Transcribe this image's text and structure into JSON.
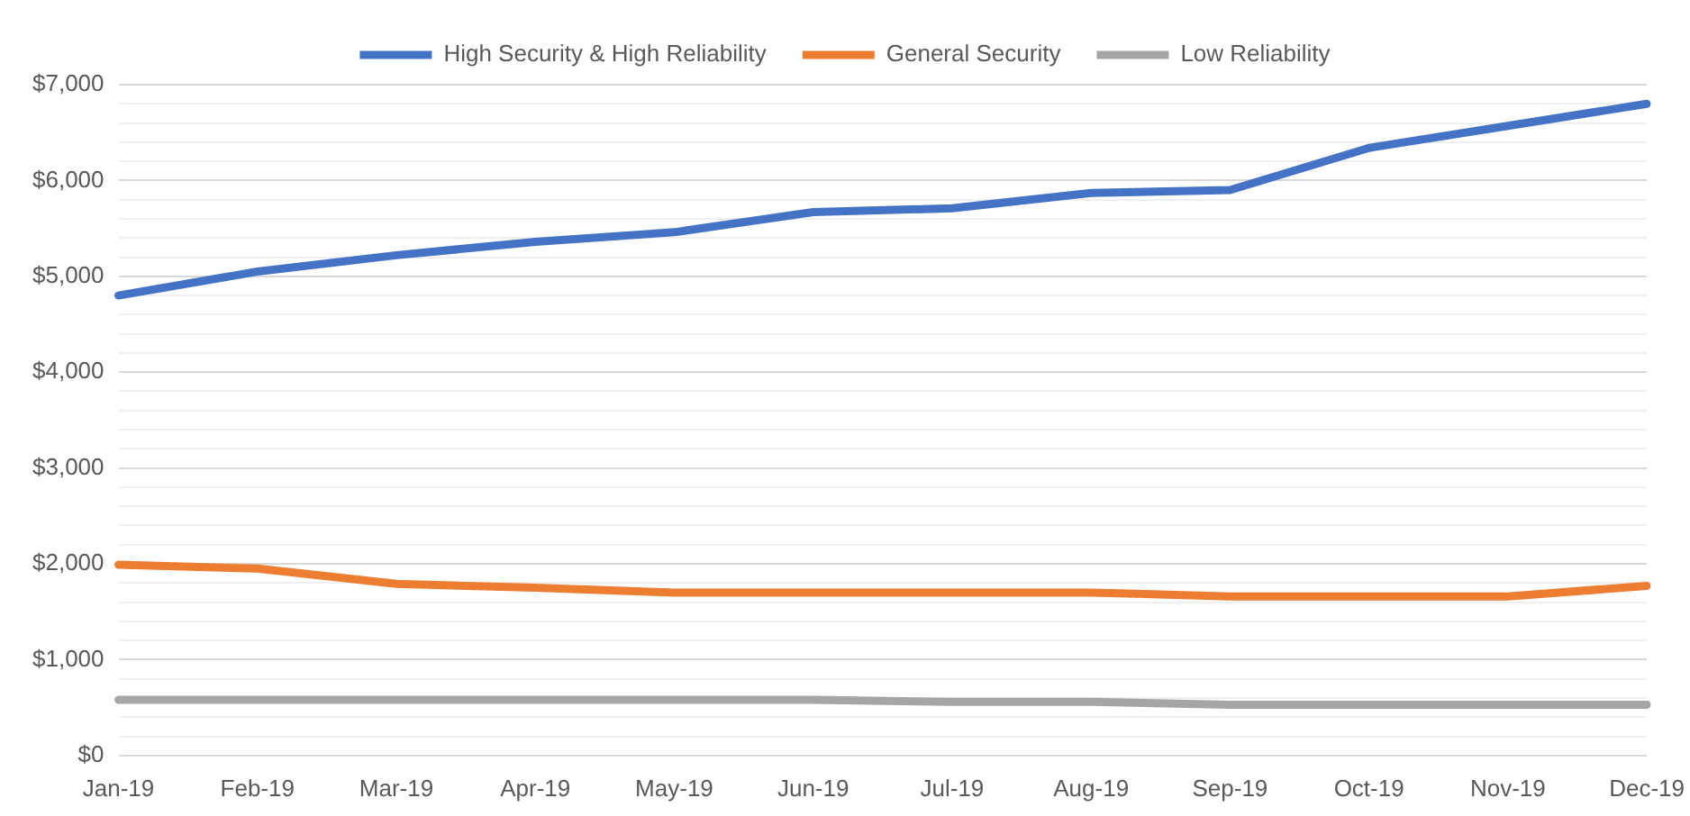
{
  "chart_data": {
    "type": "line",
    "categories": [
      "Jan-19",
      "Feb-19",
      "Mar-19",
      "Apr-19",
      "May-19",
      "Jun-19",
      "Jul-19",
      "Aug-19",
      "Sep-19",
      "Oct-19",
      "Nov-19",
      "Dec-19"
    ],
    "series": [
      {
        "name": "High Security & High Reliability",
        "color": "#4472c4",
        "values": [
          4800,
          5050,
          5220,
          5360,
          5460,
          5670,
          5710,
          5870,
          5900,
          6340,
          6570,
          6800
        ]
      },
      {
        "name": "General Security",
        "color": "#ed7d31",
        "values": [
          1990,
          1950,
          1790,
          1750,
          1700,
          1700,
          1700,
          1700,
          1660,
          1660,
          1660,
          1770
        ]
      },
      {
        "name": "Low Reliability",
        "color": "#a5a5a5",
        "values": [
          580,
          580,
          580,
          580,
          580,
          580,
          560,
          560,
          530,
          530,
          530,
          530
        ]
      }
    ],
    "ylim": [
      0,
      7000
    ],
    "yticks": [
      {
        "value": 0,
        "label": "$0"
      },
      {
        "value": 200,
        "label": null
      },
      {
        "value": 400,
        "label": null
      },
      {
        "value": 600,
        "label": null
      },
      {
        "value": 800,
        "label": null
      },
      {
        "value": 1000,
        "label": "$1,000"
      },
      {
        "value": 1200,
        "label": null
      },
      {
        "value": 1400,
        "label": null
      },
      {
        "value": 1600,
        "label": null
      },
      {
        "value": 1800,
        "label": null
      },
      {
        "value": 2000,
        "label": "$2,000"
      },
      {
        "value": 2200,
        "label": null
      },
      {
        "value": 2400,
        "label": null
      },
      {
        "value": 2600,
        "label": null
      },
      {
        "value": 2800,
        "label": null
      },
      {
        "value": 3000,
        "label": "$3,000"
      },
      {
        "value": 3200,
        "label": null
      },
      {
        "value": 3400,
        "label": null
      },
      {
        "value": 3600,
        "label": null
      },
      {
        "value": 3800,
        "label": null
      },
      {
        "value": 4000,
        "label": "$4,000"
      },
      {
        "value": 4200,
        "label": null
      },
      {
        "value": 4400,
        "label": null
      },
      {
        "value": 4600,
        "label": null
      },
      {
        "value": 4800,
        "label": null
      },
      {
        "value": 5000,
        "label": "$5,000"
      },
      {
        "value": 5200,
        "label": null
      },
      {
        "value": 5400,
        "label": null
      },
      {
        "value": 5600,
        "label": null
      },
      {
        "value": 5800,
        "label": null
      },
      {
        "value": 6000,
        "label": "$6,000"
      },
      {
        "value": 6200,
        "label": null
      },
      {
        "value": 6400,
        "label": null
      },
      {
        "value": 6600,
        "label": null
      },
      {
        "value": 6800,
        "label": null
      },
      {
        "value": 7000,
        "label": "$7,000"
      }
    ],
    "grid": "y",
    "legend": "top",
    "marker": "none",
    "line_style": "solid"
  }
}
